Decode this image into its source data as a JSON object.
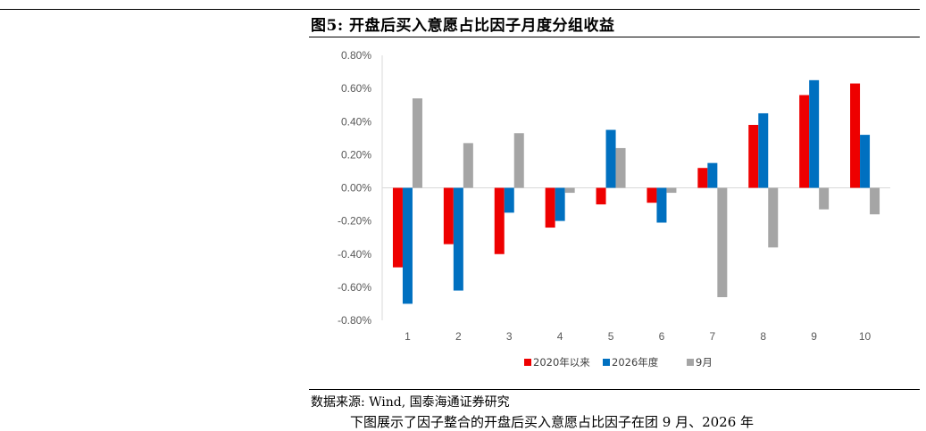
{
  "figure": {
    "title": "图5: 开盘后买入意愿占比因子月度分组收益",
    "source": "数据来源: Wind, 国泰海通证券研究",
    "cut_text": "下图展示了因子整合的开盘后买入意愿占比因子在团 9 月、2026 年"
  },
  "chart_data": {
    "type": "bar",
    "categories": [
      "1",
      "2",
      "3",
      "4",
      "5",
      "6",
      "7",
      "8",
      "9",
      "10"
    ],
    "series": [
      {
        "name": "2020年以来",
        "color": "#ee0000",
        "values": [
          -0.48,
          -0.34,
          -0.4,
          -0.24,
          -0.1,
          -0.09,
          0.12,
          0.38,
          0.56,
          0.63
        ]
      },
      {
        "name": "2026年度",
        "color": "#0070c0",
        "values": [
          -0.7,
          -0.62,
          -0.15,
          -0.2,
          0.35,
          -0.21,
          0.15,
          0.45,
          0.65,
          0.32
        ]
      },
      {
        "name": "9月",
        "color": "#a5a5a5",
        "values": [
          0.54,
          0.27,
          0.33,
          -0.03,
          0.24,
          -0.03,
          -0.66,
          -0.36,
          -0.13,
          -0.16
        ]
      }
    ],
    "ylim": [
      -0.8,
      0.8
    ],
    "yticks": [
      "0.80%",
      "0.60%",
      "0.40%",
      "0.20%",
      "0.00%",
      "-0.20%",
      "-0.40%",
      "-0.60%",
      "-0.80%"
    ],
    "ytick_values": [
      0.8,
      0.6,
      0.4,
      0.2,
      0,
      -0.2,
      -0.4,
      -0.6,
      -0.8
    ],
    "xlabel": "",
    "ylabel": "",
    "legend": "bottom",
    "grid": false
  }
}
